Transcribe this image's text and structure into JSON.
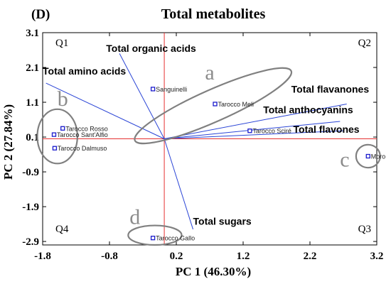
{
  "chart_data": {
    "type": "scatter",
    "panel_label": "(D)",
    "title": "Total metabolites",
    "xlabel": "PC 1 (46.30%)",
    "ylabel": "PC 2 (27.84%)",
    "xlim": [
      -1.8,
      3.2
    ],
    "ylim": [
      -3.0,
      3.1
    ],
    "xticks": [
      -1.8,
      -0.8,
      0.2,
      1.2,
      2.2,
      3.2
    ],
    "xtick_labels": [
      "-1.8",
      "-0.8",
      "0.2",
      "1.2",
      "2.2",
      "3.2"
    ],
    "yticks": [
      3.1,
      2.1,
      1.1,
      0.1,
      -0.9,
      -1.9,
      -2.9
    ],
    "ytick_labels": [
      "3.1",
      "2.1",
      "1.1",
      "0.1",
      "-0.9",
      "-1.9",
      "-2.9"
    ],
    "reference_lines": {
      "x": 0.02,
      "y": 0.05
    },
    "colors": {
      "points": "#1a1acc",
      "loadings": "#2b45d6",
      "reference": "#e53030",
      "ellipse": "#808080",
      "group_label": "#8c8c8c"
    },
    "quadrants": [
      {
        "label": "Q1",
        "pos": "top-left"
      },
      {
        "label": "Q2",
        "pos": "top-right"
      },
      {
        "label": "Q3",
        "pos": "bottom-right"
      },
      {
        "label": "Q4",
        "pos": "bottom-left"
      }
    ],
    "points": [
      {
        "name": "Sanguinelli",
        "x": -0.15,
        "y": 1.48
      },
      {
        "name": "Tarocco Meli",
        "x": 0.78,
        "y": 1.05
      },
      {
        "name": "Tarocco Sciré",
        "x": 1.3,
        "y": 0.28
      },
      {
        "name": "Moro",
        "x": 3.07,
        "y": -0.45
      },
      {
        "name": "Tarocco Rosso",
        "x": -1.5,
        "y": 0.35
      },
      {
        "name": "Tarocco Sant'Alfio",
        "x": -1.63,
        "y": 0.17
      },
      {
        "name": "Tarocco Dalmuso",
        "x": -1.62,
        "y": -0.22
      },
      {
        "name": "Tarocco Gallo",
        "x": -0.15,
        "y": -2.8
      }
    ],
    "loadings": [
      {
        "name": "Total organic acids",
        "x": -0.65,
        "y": 2.5
      },
      {
        "name": "Total amino acids",
        "x": -1.75,
        "y": 1.65
      },
      {
        "name": "Total flavanones",
        "x": 2.75,
        "y": 1.05
      },
      {
        "name": "Total anthocyanins",
        "x": 2.65,
        "y": 0.55
      },
      {
        "name": "Total flavones",
        "x": 2.7,
        "y": 0.28
      },
      {
        "name": "Total sugars",
        "x": 0.45,
        "y": -2.55
      }
    ],
    "groups": [
      {
        "label": "a",
        "cx": 0.75,
        "cy": 1.0,
        "rx": 1.28,
        "ry": 0.46,
        "angle": -24,
        "lx": 0.7,
        "ly": 1.75
      },
      {
        "label": "b",
        "cx": -1.58,
        "cy": 0.12,
        "rx": 0.3,
        "ry": 0.78,
        "angle": 0,
        "lx": -1.5,
        "ly": 1.0
      },
      {
        "label": "c",
        "cx": 3.07,
        "cy": -0.45,
        "rx": 0.18,
        "ry": 0.33,
        "angle": 0,
        "lx": 2.72,
        "ly": -0.75
      },
      {
        "label": "d",
        "cx": -0.12,
        "cy": -2.72,
        "rx": 0.4,
        "ry": 0.28,
        "angle": 0,
        "lx": -0.42,
        "ly": -2.4
      }
    ]
  }
}
